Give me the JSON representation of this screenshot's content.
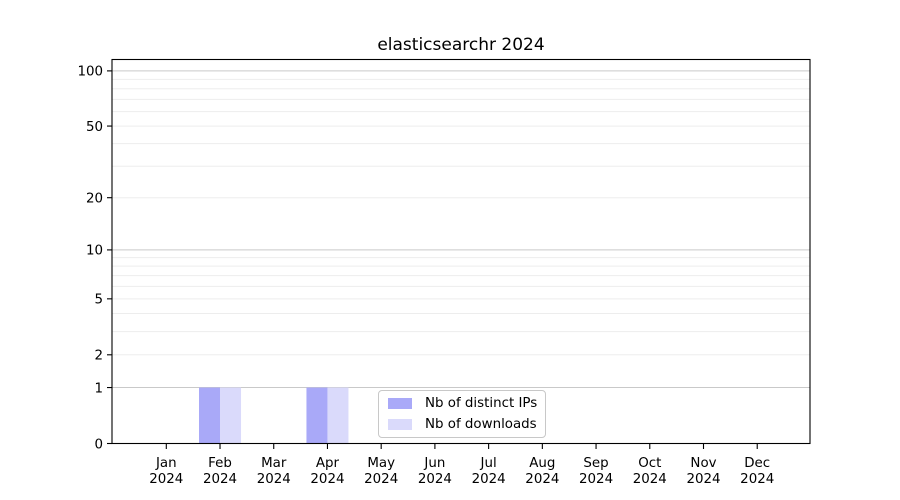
{
  "title": "elasticsearchr 2024",
  "chart_data": {
    "type": "bar",
    "title": "elasticsearchr 2024",
    "categories": [
      "Jan",
      "Feb",
      "Mar",
      "Apr",
      "May",
      "Jun",
      "Jul",
      "Aug",
      "Sep",
      "Oct",
      "Nov",
      "Dec"
    ],
    "category_year": "2024",
    "series": [
      {
        "name": "Nb of distinct IPs",
        "color": "#a9a9f8",
        "values": [
          0,
          1,
          0,
          1,
          0,
          0,
          0,
          0,
          0,
          0,
          0,
          0
        ]
      },
      {
        "name": "Nb of downloads",
        "color": "#dadafb",
        "values": [
          0,
          1,
          0,
          1,
          0,
          0,
          0,
          0,
          0,
          0,
          0,
          0
        ]
      }
    ],
    "yscale": "log1p",
    "ylim": [
      0,
      115
    ],
    "y_tick_labels": [
      0,
      1,
      2,
      5,
      10,
      20,
      50,
      100
    ],
    "y_major_grid": [
      1,
      10,
      100
    ],
    "y_minor_grid": [
      2,
      3,
      4,
      5,
      6,
      7,
      8,
      9,
      20,
      30,
      40,
      50,
      60,
      70,
      80,
      90
    ],
    "grid": "both",
    "legend_position": "inside-bottom-center",
    "colors": {
      "major_grid": "#c9c9c9",
      "minor_grid": "#ededed",
      "axis": "#000000",
      "background": "#ffffff"
    }
  }
}
